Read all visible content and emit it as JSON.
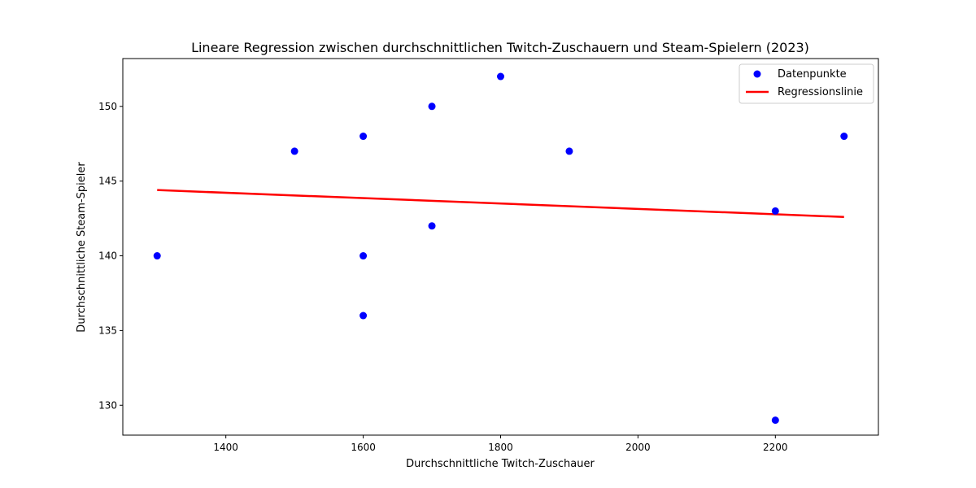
{
  "chart_data": {
    "type": "scatter",
    "title": "Lineare Regression zwischen durchschnittlichen Twitch-Zuschauern und Steam-Spielern (2023)",
    "xlabel": "Durchschnittliche Twitch-Zuschauer",
    "ylabel": "Durchschnittliche Steam-Spieler",
    "xlim": [
      1250,
      2350
    ],
    "ylim": [
      128,
      153.2
    ],
    "xticks": [
      1400,
      1600,
      1800,
      2000,
      2200
    ],
    "yticks": [
      130,
      135,
      140,
      145,
      150
    ],
    "grid": false,
    "legend_position": "top-right",
    "series": [
      {
        "name": "Datenpunkte",
        "kind": "scatter",
        "color": "#0000ff",
        "points": [
          {
            "x": 1300,
            "y": 140
          },
          {
            "x": 1500,
            "y": 147
          },
          {
            "x": 1600,
            "y": 148
          },
          {
            "x": 1600,
            "y": 140
          },
          {
            "x": 1600,
            "y": 136
          },
          {
            "x": 1700,
            "y": 150
          },
          {
            "x": 1700,
            "y": 142
          },
          {
            "x": 1800,
            "y": 152
          },
          {
            "x": 1900,
            "y": 147
          },
          {
            "x": 2200,
            "y": 143
          },
          {
            "x": 2200,
            "y": 129
          },
          {
            "x": 2300,
            "y": 148
          }
        ]
      },
      {
        "name": "Regressionslinie",
        "kind": "line",
        "color": "#ff0000",
        "points": [
          {
            "x": 1300,
            "y": 144.4
          },
          {
            "x": 2300,
            "y": 142.6
          }
        ]
      }
    ]
  }
}
